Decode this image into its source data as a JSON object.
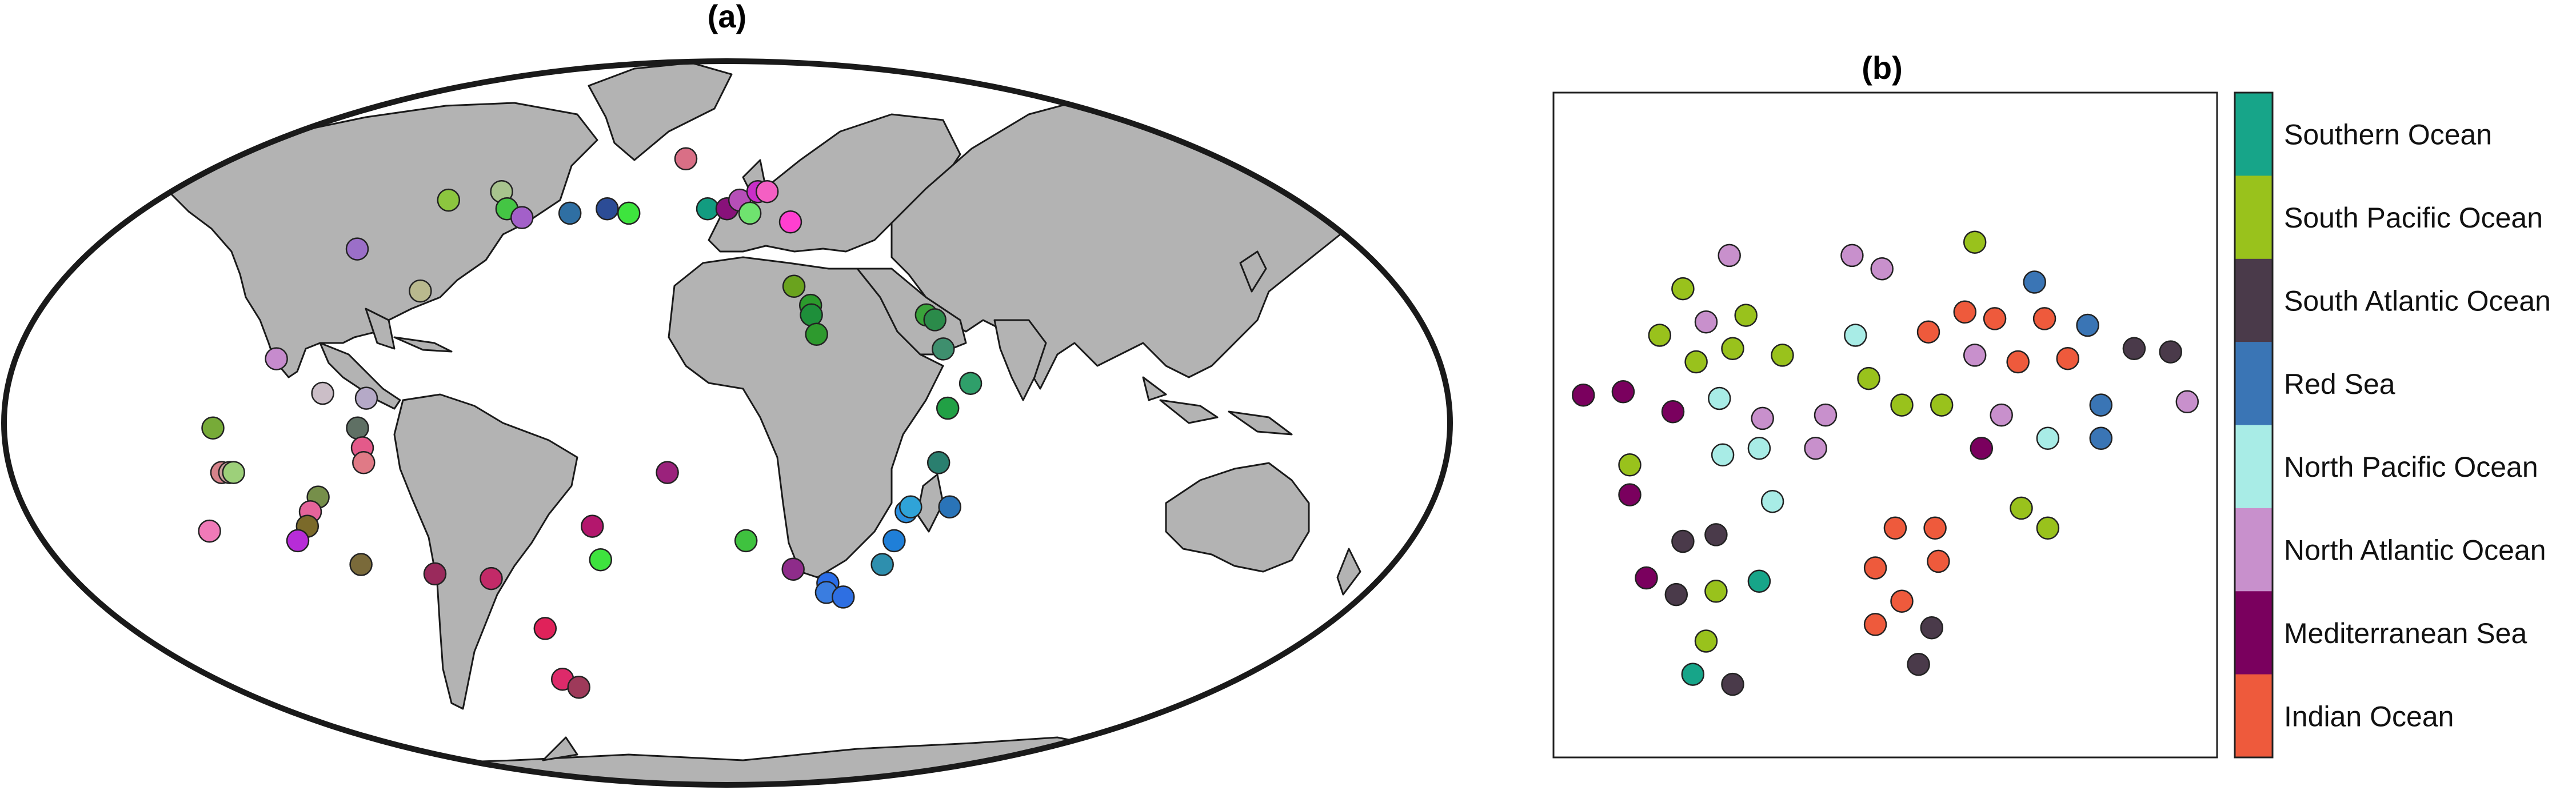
{
  "chart_data": [
    {
      "type": "scatter",
      "panel": "(a)",
      "title": "(a)",
      "projection": "Mollweide world map",
      "land_color": "#b3b3b3",
      "marker_edge": "#222222",
      "points": [
        {
          "lon": -105,
          "lat": 36,
          "color": "#9b6fc8"
        },
        {
          "lon": -88,
          "lat": 47,
          "color": "#8cc63f"
        },
        {
          "lon": -73,
          "lat": 49,
          "color": "#a8c48e"
        },
        {
          "lon": -68,
          "lat": 45,
          "color": "#44c544"
        },
        {
          "lon": -62,
          "lat": 43,
          "color": "#a360c9"
        },
        {
          "lon": -48,
          "lat": 44,
          "color": "#2f6fa3"
        },
        {
          "lon": -37,
          "lat": 45,
          "color": "#2c4c96"
        },
        {
          "lon": -30,
          "lat": 44,
          "color": "#3ee43e"
        },
        {
          "lon": -82,
          "lat": 27,
          "color": "#b9b98e"
        },
        {
          "lon": -15,
          "lat": 57,
          "color": "#d96f86"
        },
        {
          "lon": -6,
          "lat": 45,
          "color": "#129c80"
        },
        {
          "lon": 0,
          "lat": 45,
          "color": "#88117a"
        },
        {
          "lon": 4,
          "lat": 47,
          "color": "#b64fb8"
        },
        {
          "lon": 10,
          "lat": 49,
          "color": "#c92ec8"
        },
        {
          "lon": 7,
          "lat": 44,
          "color": "#6fe36f"
        },
        {
          "lon": 13,
          "lat": 49,
          "color": "#f45fc3"
        },
        {
          "lon": 19,
          "lat": 42,
          "color": "#ff3fd0"
        },
        {
          "lon": 18,
          "lat": 28,
          "color": "#6aa31e"
        },
        {
          "lon": 22,
          "lat": 24,
          "color": "#2c9b2c"
        },
        {
          "lon": 22,
          "lat": 22,
          "color": "#1e8f3a"
        },
        {
          "lon": 23,
          "lat": 18,
          "color": "#2e9a2e"
        },
        {
          "lon": 52,
          "lat": 22,
          "color": "#3aa33a"
        },
        {
          "lon": 54,
          "lat": 21,
          "color": "#2b8b4a"
        },
        {
          "lon": 55,
          "lat": 15,
          "color": "#3e8f6e"
        },
        {
          "lon": 61,
          "lat": 8,
          "color": "#2f9f6a"
        },
        {
          "lon": 55,
          "lat": 3,
          "color": "#21a045"
        },
        {
          "lon": 53,
          "lat": -8,
          "color": "#2a7f6f"
        },
        {
          "lon": -114,
          "lat": 13,
          "color": "#c68bcd"
        },
        {
          "lon": -101,
          "lat": 6,
          "color": "#cbbec7"
        },
        {
          "lon": -90,
          "lat": 5,
          "color": "#b5a9c7"
        },
        {
          "lon": -92,
          "lat": -1,
          "color": "#5f7064"
        },
        {
          "lon": -91,
          "lat": -5,
          "color": "#e45a8a"
        },
        {
          "lon": -91,
          "lat": -8,
          "color": "#e07a86"
        },
        {
          "lon": -128,
          "lat": -1,
          "color": "#77ab38"
        },
        {
          "lon": -127,
          "lat": -10,
          "color": "#d6828a"
        },
        {
          "lon": -125,
          "lat": -10,
          "color": "#c9a09c"
        },
        {
          "lon": -124,
          "lat": -10,
          "color": "#9dd07a"
        },
        {
          "lon": -104,
          "lat": -15,
          "color": "#768f4a"
        },
        {
          "lon": -107,
          "lat": -18,
          "color": "#e5649b"
        },
        {
          "lon": -109,
          "lat": -21,
          "color": "#7b6a2a"
        },
        {
          "lon": -135,
          "lat": -22,
          "color": "#f07ab8"
        },
        {
          "lon": -113,
          "lat": -24,
          "color": "#b72cd8"
        },
        {
          "lon": -99,
          "lat": -29,
          "color": "#7a6a3a"
        },
        {
          "lon": -80,
          "lat": -31,
          "color": "#9a2a5c"
        },
        {
          "lon": -65,
          "lat": -32,
          "color": "#c22a68"
        },
        {
          "lon": -35,
          "lat": -21,
          "color": "#b3176d"
        },
        {
          "lon": -34,
          "lat": -28,
          "color": "#3ee33e"
        },
        {
          "lon": -15,
          "lat": -10,
          "color": "#9b227c"
        },
        {
          "lon": -55,
          "lat": -43,
          "color": "#e0225a"
        },
        {
          "lon": -58,
          "lat": -55,
          "color": "#dd2a6a"
        },
        {
          "lon": -54,
          "lat": -57,
          "color": "#9e3a5a"
        },
        {
          "lon": 5,
          "lat": -24,
          "color": "#3fc23f"
        },
        {
          "lon": 18,
          "lat": -30,
          "color": "#8e2c8a"
        },
        {
          "lon": 28,
          "lat": -33,
          "color": "#2a6de8"
        },
        {
          "lon": 28,
          "lat": -35,
          "color": "#3a7de0"
        },
        {
          "lon": 33,
          "lat": -36,
          "color": "#2e6fe2"
        },
        {
          "lon": 42,
          "lat": -29,
          "color": "#2e8fae"
        },
        {
          "lon": 44,
          "lat": -24,
          "color": "#1f7fd8"
        },
        {
          "lon": 46,
          "lat": -18,
          "color": "#2a8fe0"
        },
        {
          "lon": 47,
          "lat": -17,
          "color": "#2fa3d8"
        },
        {
          "lon": 57,
          "lat": -17,
          "color": "#2a74b8"
        }
      ]
    },
    {
      "type": "scatter",
      "panel": "(b)",
      "title": "(b)",
      "xlim": [
        0,
        100
      ],
      "ylim": [
        0,
        100
      ],
      "grid": false,
      "legend": "colorbar-right",
      "points": [
        {
          "x": 4.5,
          "y": 54.5,
          "c": "Mediterranean Sea"
        },
        {
          "x": 10.5,
          "y": 55.0,
          "c": "Mediterranean Sea"
        },
        {
          "x": 18.0,
          "y": 52.0,
          "c": "Mediterranean Sea"
        },
        {
          "x": 11.5,
          "y": 39.5,
          "c": "Mediterranean Sea"
        },
        {
          "x": 14.0,
          "y": 27.0,
          "c": "Mediterranean Sea"
        },
        {
          "x": 64.5,
          "y": 46.5,
          "c": "Mediterranean Sea"
        },
        {
          "x": 26.5,
          "y": 75.5,
          "c": "North Atlantic Ocean"
        },
        {
          "x": 45.0,
          "y": 75.5,
          "c": "North Atlantic Ocean"
        },
        {
          "x": 49.5,
          "y": 73.5,
          "c": "North Atlantic Ocean"
        },
        {
          "x": 23.0,
          "y": 65.5,
          "c": "North Atlantic Ocean"
        },
        {
          "x": 31.5,
          "y": 51.0,
          "c": "North Atlantic Ocean"
        },
        {
          "x": 41.0,
          "y": 51.5,
          "c": "North Atlantic Ocean"
        },
        {
          "x": 39.5,
          "y": 46.5,
          "c": "North Atlantic Ocean"
        },
        {
          "x": 63.5,
          "y": 60.5,
          "c": "North Atlantic Ocean"
        },
        {
          "x": 67.5,
          "y": 51.5,
          "c": "North Atlantic Ocean"
        },
        {
          "x": 95.5,
          "y": 53.5,
          "c": "North Atlantic Ocean"
        },
        {
          "x": 25.0,
          "y": 54.0,
          "c": "North Pacific Ocean"
        },
        {
          "x": 25.5,
          "y": 45.5,
          "c": "North Pacific Ocean"
        },
        {
          "x": 31.0,
          "y": 46.5,
          "c": "North Pacific Ocean"
        },
        {
          "x": 33.0,
          "y": 38.5,
          "c": "North Pacific Ocean"
        },
        {
          "x": 45.5,
          "y": 63.5,
          "c": "North Pacific Ocean"
        },
        {
          "x": 74.5,
          "y": 48.0,
          "c": "North Pacific Ocean"
        },
        {
          "x": 19.5,
          "y": 70.5,
          "c": "South Pacific Ocean"
        },
        {
          "x": 16.0,
          "y": 63.5,
          "c": "South Pacific Ocean"
        },
        {
          "x": 21.5,
          "y": 59.5,
          "c": "South Pacific Ocean"
        },
        {
          "x": 27.0,
          "y": 61.5,
          "c": "South Pacific Ocean"
        },
        {
          "x": 29.0,
          "y": 66.5,
          "c": "South Pacific Ocean"
        },
        {
          "x": 34.5,
          "y": 60.5,
          "c": "South Pacific Ocean"
        },
        {
          "x": 47.5,
          "y": 57.0,
          "c": "South Pacific Ocean"
        },
        {
          "x": 52.5,
          "y": 53.0,
          "c": "South Pacific Ocean"
        },
        {
          "x": 58.5,
          "y": 53.0,
          "c": "South Pacific Ocean"
        },
        {
          "x": 63.5,
          "y": 77.5,
          "c": "South Pacific Ocean"
        },
        {
          "x": 11.5,
          "y": 44.0,
          "c": "South Pacific Ocean"
        },
        {
          "x": 24.5,
          "y": 25.0,
          "c": "South Pacific Ocean"
        },
        {
          "x": 23.0,
          "y": 17.5,
          "c": "South Pacific Ocean"
        },
        {
          "x": 70.5,
          "y": 37.5,
          "c": "South Pacific Ocean"
        },
        {
          "x": 74.5,
          "y": 34.5,
          "c": "South Pacific Ocean"
        },
        {
          "x": 19.5,
          "y": 32.5,
          "c": "South Atlantic Ocean"
        },
        {
          "x": 24.5,
          "y": 33.5,
          "c": "South Atlantic Ocean"
        },
        {
          "x": 18.5,
          "y": 24.5,
          "c": "South Atlantic Ocean"
        },
        {
          "x": 27.0,
          "y": 11.0,
          "c": "South Atlantic Ocean"
        },
        {
          "x": 57.0,
          "y": 19.5,
          "c": "South Atlantic Ocean"
        },
        {
          "x": 55.0,
          "y": 14.0,
          "c": "South Atlantic Ocean"
        },
        {
          "x": 87.5,
          "y": 61.5,
          "c": "South Atlantic Ocean"
        },
        {
          "x": 93.0,
          "y": 61.0,
          "c": "South Atlantic Ocean"
        },
        {
          "x": 31.0,
          "y": 26.5,
          "c": "Southern Ocean"
        },
        {
          "x": 21.0,
          "y": 12.5,
          "c": "Southern Ocean"
        },
        {
          "x": 72.5,
          "y": 71.5,
          "c": "Red Sea"
        },
        {
          "x": 80.5,
          "y": 65.0,
          "c": "Red Sea"
        },
        {
          "x": 82.5,
          "y": 53.0,
          "c": "Red Sea"
        },
        {
          "x": 82.5,
          "y": 48.0,
          "c": "Red Sea"
        },
        {
          "x": 56.5,
          "y": 64.0,
          "c": "Indian Ocean"
        },
        {
          "x": 62.0,
          "y": 67.0,
          "c": "Indian Ocean"
        },
        {
          "x": 66.5,
          "y": 66.0,
          "c": "Indian Ocean"
        },
        {
          "x": 74.0,
          "y": 66.0,
          "c": "Indian Ocean"
        },
        {
          "x": 70.0,
          "y": 59.5,
          "c": "Indian Ocean"
        },
        {
          "x": 77.5,
          "y": 60.0,
          "c": "Indian Ocean"
        },
        {
          "x": 51.5,
          "y": 34.5,
          "c": "Indian Ocean"
        },
        {
          "x": 57.5,
          "y": 34.5,
          "c": "Indian Ocean"
        },
        {
          "x": 48.5,
          "y": 28.5,
          "c": "Indian Ocean"
        },
        {
          "x": 58.0,
          "y": 29.5,
          "c": "Indian Ocean"
        },
        {
          "x": 52.5,
          "y": 23.5,
          "c": "Indian Ocean"
        },
        {
          "x": 48.5,
          "y": 20.0,
          "c": "Indian Ocean"
        }
      ],
      "colorbar": [
        {
          "label": "Southern Ocean",
          "color": "#17a589"
        },
        {
          "label": "South Pacific Ocean",
          "color": "#99c21c"
        },
        {
          "label": "South Atlantic Ocean",
          "color": "#4a3a4a"
        },
        {
          "label": "Red Sea",
          "color": "#3a75b5"
        },
        {
          "label": "North Pacific Ocean",
          "color": "#a8ece6"
        },
        {
          "label": "North Atlantic Ocean",
          "color": "#c890cc"
        },
        {
          "label": "Mediterranean Sea",
          "color": "#7a005e"
        },
        {
          "label": "Indian Ocean",
          "color": "#ee5a3c"
        }
      ]
    }
  ]
}
